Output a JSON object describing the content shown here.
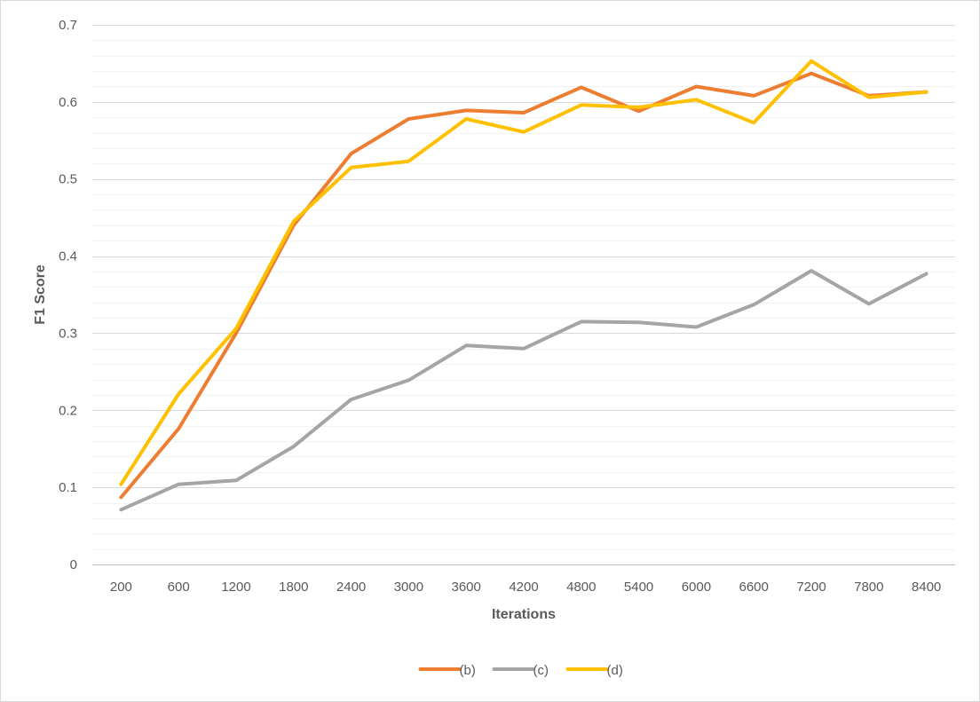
{
  "chart_data": {
    "type": "line",
    "title": "",
    "xlabel": "Iterations",
    "ylabel": "F1 Score",
    "categories": [
      "200",
      "600",
      "1200",
      "1800",
      "2400",
      "3000",
      "3600",
      "4200",
      "4800",
      "5400",
      "6000",
      "6600",
      "7200",
      "7800",
      "8400"
    ],
    "ylim": [
      0,
      0.7
    ],
    "yticks": [
      "0",
      "0.1",
      "0.2",
      "0.3",
      "0.4",
      "0.5",
      "0.6",
      "0.7"
    ],
    "ytick_values": [
      0,
      0.1,
      0.2,
      0.3,
      0.4,
      0.5,
      0.6,
      0.7
    ],
    "grid": true,
    "minor_grid": true,
    "legend_position": "bottom",
    "series": [
      {
        "name": "(b)",
        "color": "#ed7d31",
        "values": [
          0.087,
          0.176,
          0.3,
          0.44,
          0.533,
          0.578,
          0.589,
          0.586,
          0.619,
          0.588,
          0.62,
          0.608,
          0.637,
          0.608,
          0.613
        ]
      },
      {
        "name": "(c)",
        "color": "#a5a5a5",
        "values": [
          0.071,
          0.104,
          0.109,
          0.153,
          0.214,
          0.239,
          0.284,
          0.28,
          0.315,
          0.314,
          0.308,
          0.337,
          0.381,
          0.338,
          0.377
        ]
      },
      {
        "name": "(d)",
        "color": "#ffc000",
        "values": [
          0.104,
          0.221,
          0.306,
          0.445,
          0.515,
          0.523,
          0.578,
          0.561,
          0.596,
          0.593,
          0.603,
          0.573,
          0.653,
          0.606,
          0.613
        ]
      }
    ]
  }
}
